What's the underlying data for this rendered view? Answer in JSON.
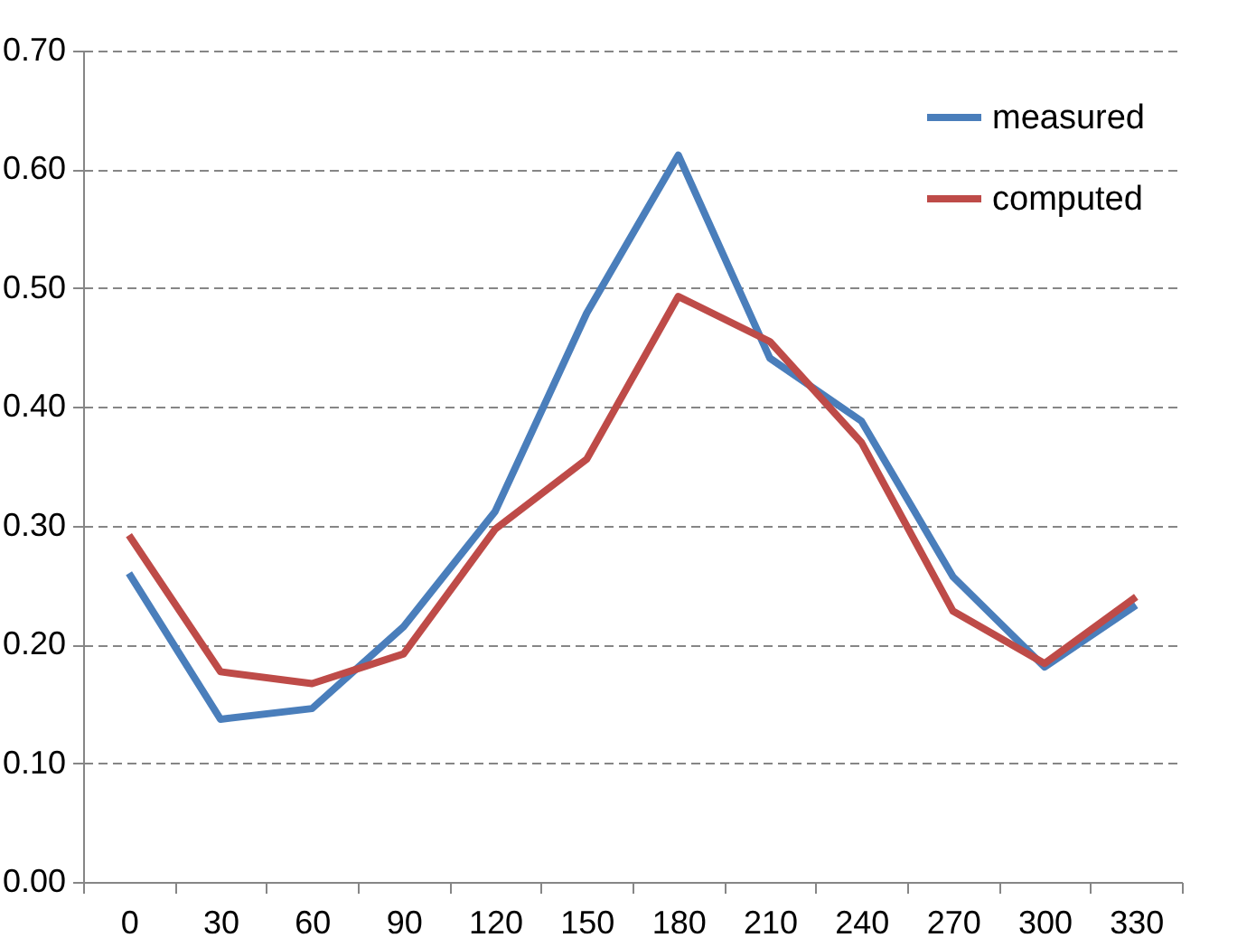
{
  "chart_data": {
    "type": "line",
    "categories": [
      "0",
      "30",
      "60",
      "90",
      "120",
      "150",
      "180",
      "210",
      "240",
      "270",
      "300",
      "330"
    ],
    "series": [
      {
        "name": "measured",
        "color": "#4a7ebb",
        "values": [
          0.26,
          0.137,
          0.146,
          0.215,
          0.312,
          0.479,
          0.612,
          0.441,
          0.388,
          0.257,
          0.181,
          0.233
        ]
      },
      {
        "name": "computed",
        "color": "#be4b48",
        "values": [
          0.292,
          0.177,
          0.167,
          0.192,
          0.297,
          0.356,
          0.493,
          0.455,
          0.37,
          0.228,
          0.184,
          0.24
        ]
      }
    ],
    "ylim": [
      0,
      0.7
    ],
    "yticks": [
      {
        "value": 0,
        "label": "0.00"
      },
      {
        "value": 0.1,
        "label": "0.10"
      },
      {
        "value": 0.2,
        "label": "0.20"
      },
      {
        "value": 0.3,
        "label": "0.30"
      },
      {
        "value": 0.4,
        "label": "0.40"
      },
      {
        "value": 0.5,
        "label": "0.50"
      },
      {
        "value": 0.6,
        "label": "0.60"
      },
      {
        "value": 0.7,
        "label": "0.70"
      }
    ],
    "grid": "y",
    "legend": "top right",
    "line_style": "solid",
    "marker": "none"
  }
}
